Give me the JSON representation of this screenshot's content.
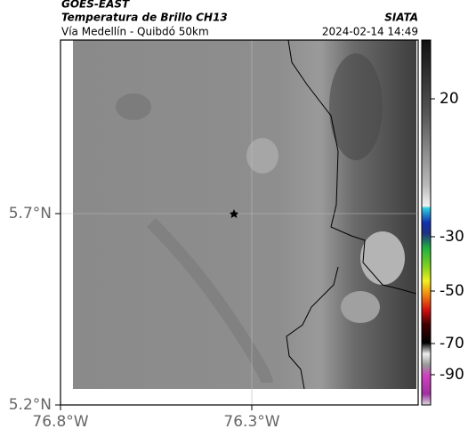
{
  "header": {
    "source": "GOES-EAST",
    "product": "Temperatura de Brillo CH13",
    "route": "Vía Medellín - Quibdó 50km",
    "agency": "SIATA",
    "timestamp": "2024-02-14 14:49"
  },
  "map": {
    "lat_labels": [
      "5.7°N",
      "5.2°N"
    ],
    "lon_labels": [
      "76.8°W",
      "76.3°W"
    ]
  },
  "colorbar": {
    "ticks": [
      20,
      -30,
      -50,
      -70,
      -90
    ]
  }
}
